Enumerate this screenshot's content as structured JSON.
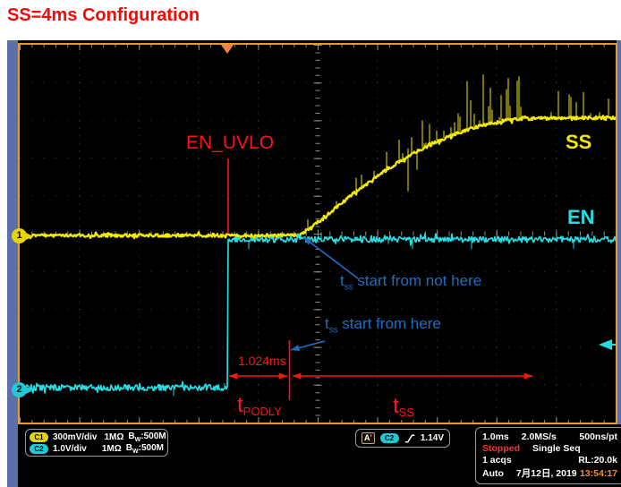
{
  "title": "SS=4ms Configuration",
  "colors": {
    "ch1_yellow": "#f4ea00",
    "ch2_cyan": "#25dce2",
    "annotation_red": "#ff1414",
    "annotation_blue": "#1b6ec6",
    "frame_blue": "#5d6fab",
    "border_orange": "#e89b2f",
    "trigger_marker": "#ef8050"
  },
  "scope": {
    "channel_markers": {
      "ch1": "1",
      "ch2": "2"
    },
    "channel_readouts": [
      {
        "badge": "C1",
        "scale": "300mV/div",
        "impedance": "1MΩ",
        "bw_b": "B",
        "bw_sub": "W",
        "bw_rest": ":500M"
      },
      {
        "badge": "C2",
        "scale": "1.0V/div",
        "impedance": "1MΩ",
        "bw_b": "B",
        "bw_sub": "W",
        "bw_rest": ":500M"
      }
    ],
    "trigger_readout": {
      "label": "A",
      "label_tick": "'",
      "source": "C2",
      "slope": "rising-edge",
      "level": "1.14V"
    },
    "acquisition": {
      "timebase": "1.0ms",
      "sample_rate": "2.0MS/s",
      "resolution": "500ns/pt",
      "status": "Stopped",
      "mode": "Single Seq",
      "acquisitions": "1 acqs",
      "record_length": "RL:20.0k",
      "trigger_mode": "Auto",
      "date": "7月12日, 2019",
      "time": "13:54:17"
    }
  },
  "annotations": {
    "en_uvlo": "EN_UVLO",
    "ss_label": "SS",
    "en_label": "EN",
    "not_here": {
      "t": "t",
      "sub": "ss",
      "rest": " start from not here"
    },
    "here": {
      "t": "t",
      "sub": "ss",
      "rest": " start from here"
    },
    "delay_value": "1.024ms",
    "t_podly": {
      "t": "t",
      "sub": "PODLY"
    },
    "t_ss": {
      "t": "t",
      "sub": "SS"
    }
  },
  "chart_data": {
    "type": "line",
    "title": "SS=4ms Configuration",
    "x_axis": {
      "units": "ms",
      "per_div": 1.0,
      "divisions": 10,
      "trigger_at_div_from_left": 3.5
    },
    "y_axis": {
      "divisions": 10
    },
    "grid": "dotted divisions with center tick axes",
    "trigger": {
      "source": "C2",
      "level_volts": 1.14,
      "slope": "rising"
    },
    "series": [
      {
        "name": "SS",
        "channel": "C1",
        "color": "#f4ea00",
        "volts_per_div": 0.3,
        "points": [
          [
            -3.49,
            0
          ],
          [
            1.22,
            0
          ],
          [
            1.45,
            0.085
          ],
          [
            1.67,
            0.163
          ],
          [
            1.9,
            0.248
          ],
          [
            2.12,
            0.333
          ],
          [
            2.35,
            0.411
          ],
          [
            2.57,
            0.489
          ],
          [
            2.8,
            0.56
          ],
          [
            3.03,
            0.624
          ],
          [
            3.25,
            0.681
          ],
          [
            3.48,
            0.738
          ],
          [
            3.7,
            0.78
          ],
          [
            3.93,
            0.823
          ],
          [
            4.16,
            0.858
          ],
          [
            4.38,
            0.887
          ],
          [
            4.61,
            0.908
          ],
          [
            4.83,
            0.922
          ],
          [
            5.06,
            0.929
          ],
          [
            6.53,
            0.936
          ]
        ]
      },
      {
        "name": "EN",
        "channel": "C2",
        "color": "#25dce2",
        "volts_per_div": 1.0,
        "points": [
          [
            -3.49,
            0
          ],
          [
            0,
            0
          ],
          [
            0,
            3.92
          ],
          [
            6.53,
            3.92
          ]
        ]
      }
    ],
    "measurements": {
      "t_podly_ms": 1.024,
      "t_ss_ms": 4.0
    },
    "legend_position": "labels on traces (SS upper right, EN mid right)"
  }
}
